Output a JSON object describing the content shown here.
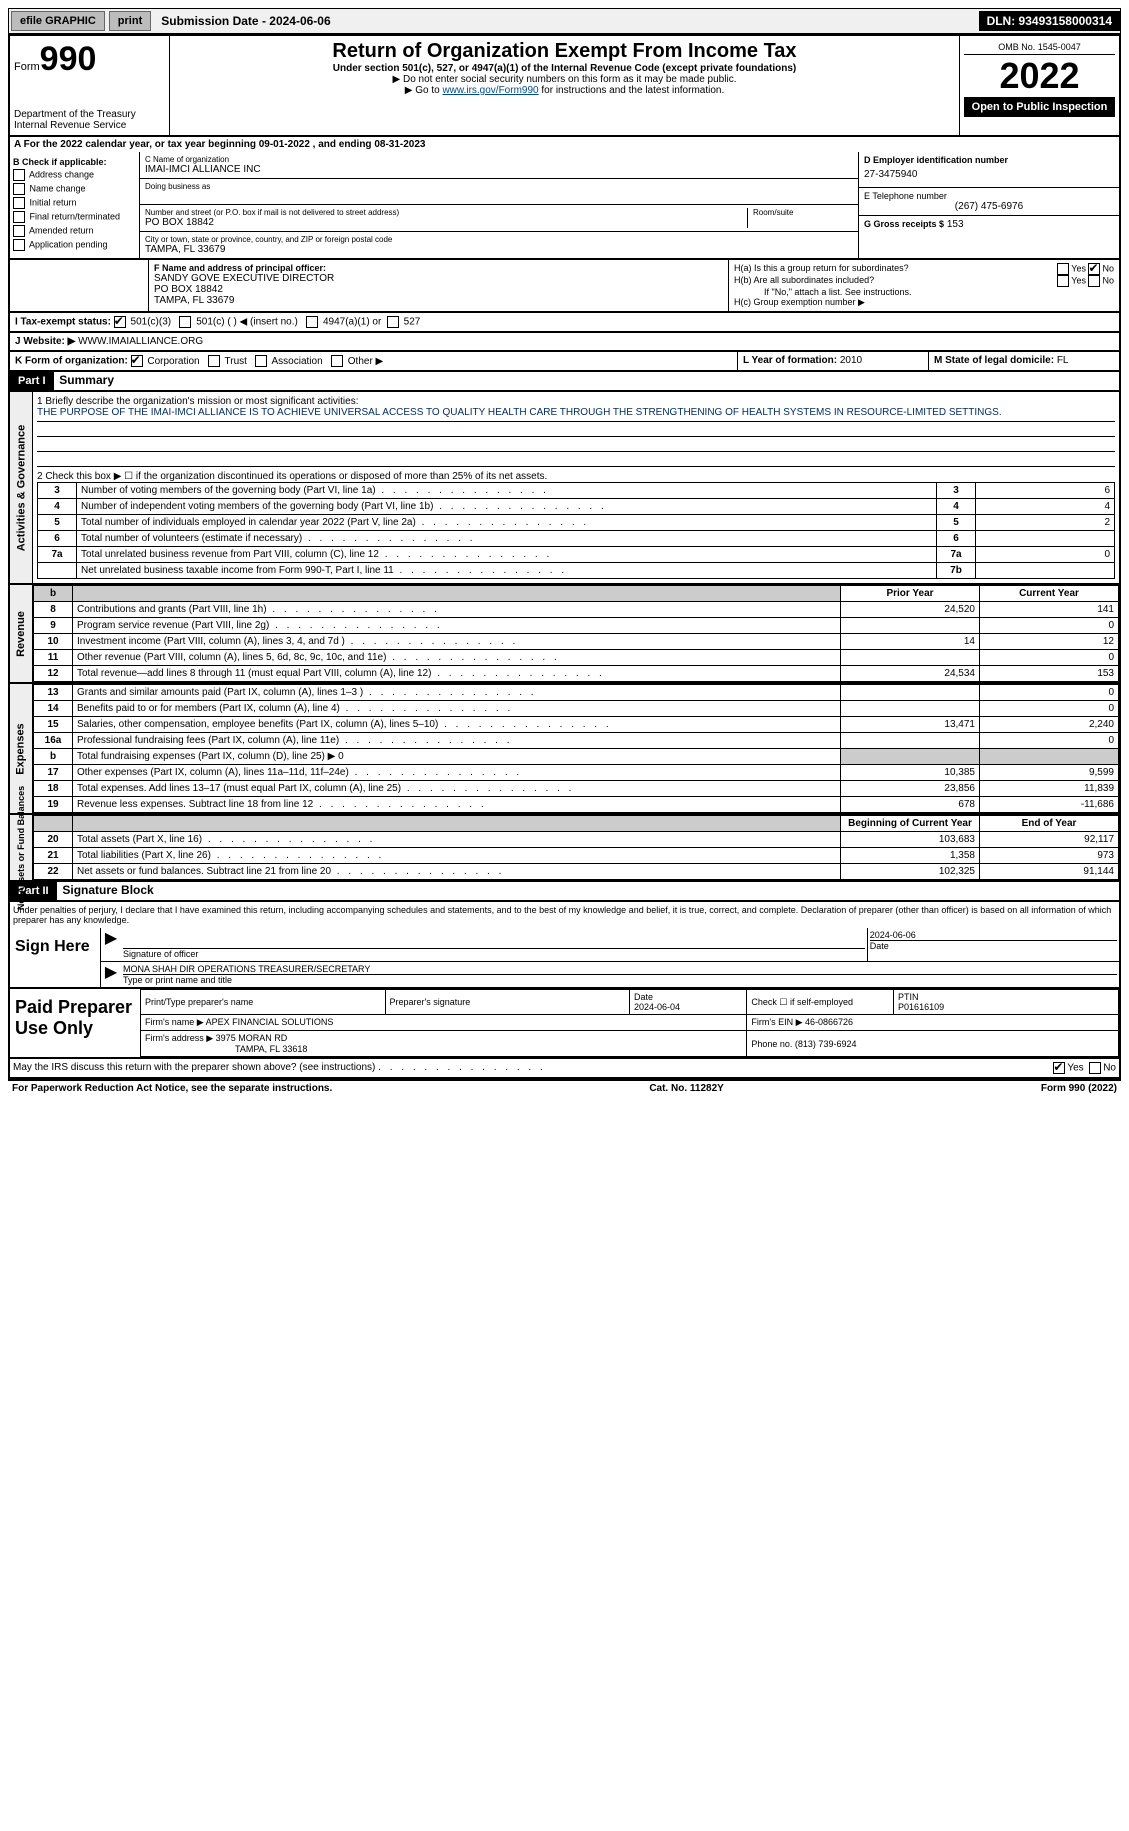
{
  "topbar": {
    "efile": "efile GRAPHIC",
    "print": "print",
    "submission": "Submission Date - 2024-06-06",
    "dln": "DLN: 93493158000314"
  },
  "header": {
    "form_prefix": "Form",
    "form_number": "990",
    "dept": "Department of the Treasury",
    "irs": "Internal Revenue Service",
    "title": "Return of Organization Exempt From Income Tax",
    "subtitle": "Under section 501(c), 527, or 4947(a)(1) of the Internal Revenue Code (except private foundations)",
    "note1": "▶ Do not enter social security numbers on this form as it may be made public.",
    "note2_pre": "▶ Go to ",
    "note2_link": "www.irs.gov/Form990",
    "note2_post": " for instructions and the latest information.",
    "omb": "OMB No. 1545-0047",
    "year": "2022",
    "open": "Open to Public Inspection"
  },
  "line_a": "A For the 2022 calendar year, or tax year beginning 09-01-2022    , and ending 08-31-2023",
  "col_b": {
    "header": "B Check if applicable:",
    "items": [
      "Address change",
      "Name change",
      "Initial return",
      "Final return/terminated",
      "Amended return",
      "Application pending"
    ]
  },
  "col_c": {
    "name_label": "C Name of organization",
    "name": "IMAI-IMCI ALLIANCE INC",
    "dba_label": "Doing business as",
    "street_label": "Number and street (or P.O. box if mail is not delivered to street address)",
    "room_label": "Room/suite",
    "street": "PO BOX 18842",
    "city_label": "City or town, state or province, country, and ZIP or foreign postal code",
    "city": "TAMPA, FL  33679"
  },
  "col_d": {
    "ein_label": "D Employer identification number",
    "ein": "27-3475940",
    "phone_label": "E Telephone number",
    "phone": "(267) 475-6976",
    "gross_label": "G Gross receipts $",
    "gross": "153"
  },
  "row_f": {
    "label": "F Name and address of principal officer:",
    "name": "SANDY GOVE EXECUTIVE DIRECTOR",
    "addr1": "PO BOX 18842",
    "addr2": "TAMPA, FL  33679"
  },
  "row_h": {
    "ha_label": "H(a)  Is this a group return for subordinates?",
    "hb_label": "H(b)  Are all subordinates included?",
    "hb_note": "If \"No,\" attach a list. See instructions.",
    "hc_label": "H(c)  Group exemption number ▶",
    "yes": "Yes",
    "no": "No"
  },
  "row_i": {
    "label": "I   Tax-exempt status:",
    "opt1": "501(c)(3)",
    "opt2": "501(c) (   ) ◀ (insert no.)",
    "opt3": "4947(a)(1) or",
    "opt4": "527"
  },
  "row_j": {
    "label": "J   Website: ▶",
    "value": "WWW.IMAIALLIANCE.ORG"
  },
  "row_k": {
    "label": "K Form of organization:",
    "opts": [
      "Corporation",
      "Trust",
      "Association",
      "Other ▶"
    ],
    "l_label": "L Year of formation:",
    "l_val": "2010",
    "m_label": "M State of legal domicile:",
    "m_val": "FL"
  },
  "part1": {
    "header": "Part I",
    "title": "Summary"
  },
  "summary": {
    "q1": "1  Briefly describe the organization's mission or most significant activities:",
    "mission": "THE PURPOSE OF THE IMAI-IMCI ALLIANCE IS TO ACHIEVE UNIVERSAL ACCESS TO QUALITY HEALTH CARE THROUGH THE STRENGTHENING OF HEALTH SYSTEMS IN RESOURCE-LIMITED SETTINGS.",
    "q2": "2  Check this box ▶ ☐  if the organization discontinued its operations or disposed of more than 25% of its net assets.",
    "lines": [
      {
        "n": "3",
        "d": "Number of voting members of the governing body (Part VI, line 1a)",
        "b": "3",
        "v": "6"
      },
      {
        "n": "4",
        "d": "Number of independent voting members of the governing body (Part VI, line 1b)",
        "b": "4",
        "v": "4"
      },
      {
        "n": "5",
        "d": "Total number of individuals employed in calendar year 2022 (Part V, line 2a)",
        "b": "5",
        "v": "2"
      },
      {
        "n": "6",
        "d": "Total number of volunteers (estimate if necessary)",
        "b": "6",
        "v": ""
      },
      {
        "n": "7a",
        "d": "Total unrelated business revenue from Part VIII, column (C), line 12",
        "b": "7a",
        "v": "0"
      },
      {
        "n": "",
        "d": "Net unrelated business taxable income from Form 990-T, Part I, line 11",
        "b": "7b",
        "v": ""
      }
    ]
  },
  "revenue": {
    "tab": "Revenue",
    "prior_label": "Prior Year",
    "current_label": "Current Year",
    "rows": [
      {
        "n": "8",
        "d": "Contributions and grants (Part VIII, line 1h)",
        "p": "24,520",
        "c": "141"
      },
      {
        "n": "9",
        "d": "Program service revenue (Part VIII, line 2g)",
        "p": "",
        "c": "0"
      },
      {
        "n": "10",
        "d": "Investment income (Part VIII, column (A), lines 3, 4, and 7d )",
        "p": "14",
        "c": "12"
      },
      {
        "n": "11",
        "d": "Other revenue (Part VIII, column (A), lines 5, 6d, 8c, 9c, 10c, and 11e)",
        "p": "",
        "c": "0"
      },
      {
        "n": "12",
        "d": "Total revenue—add lines 8 through 11 (must equal Part VIII, column (A), line 12)",
        "p": "24,534",
        "c": "153"
      }
    ]
  },
  "expenses": {
    "tab": "Expenses",
    "rows": [
      {
        "n": "13",
        "d": "Grants and similar amounts paid (Part IX, column (A), lines 1–3 )",
        "p": "",
        "c": "0"
      },
      {
        "n": "14",
        "d": "Benefits paid to or for members (Part IX, column (A), line 4)",
        "p": "",
        "c": "0"
      },
      {
        "n": "15",
        "d": "Salaries, other compensation, employee benefits (Part IX, column (A), lines 5–10)",
        "p": "13,471",
        "c": "2,240"
      },
      {
        "n": "16a",
        "d": "Professional fundraising fees (Part IX, column (A), line 11e)",
        "p": "",
        "c": "0"
      },
      {
        "n": "b",
        "d": "Total fundraising expenses (Part IX, column (D), line 25) ▶ 0",
        "p": "grey",
        "c": "grey"
      },
      {
        "n": "17",
        "d": "Other expenses (Part IX, column (A), lines 11a–11d, 11f–24e)",
        "p": "10,385",
        "c": "9,599"
      },
      {
        "n": "18",
        "d": "Total expenses. Add lines 13–17 (must equal Part IX, column (A), line 25)",
        "p": "23,856",
        "c": "11,839"
      },
      {
        "n": "19",
        "d": "Revenue less expenses. Subtract line 18 from line 12",
        "p": "678",
        "c": "-11,686"
      }
    ]
  },
  "netassets": {
    "tab": "Net Assets or Fund Balances",
    "begin_label": "Beginning of Current Year",
    "end_label": "End of Year",
    "rows": [
      {
        "n": "20",
        "d": "Total assets (Part X, line 16)",
        "p": "103,683",
        "c": "92,117"
      },
      {
        "n": "21",
        "d": "Total liabilities (Part X, line 26)",
        "p": "1,358",
        "c": "973"
      },
      {
        "n": "22",
        "d": "Net assets or fund balances. Subtract line 21 from line 20",
        "p": "102,325",
        "c": "91,144"
      }
    ]
  },
  "part2": {
    "header": "Part II",
    "title": "Signature Block",
    "penalties": "Under penalties of perjury, I declare that I have examined this return, including accompanying schedules and statements, and to the best of my knowledge and belief, it is true, correct, and complete. Declaration of preparer (other than officer) is based on all information of which preparer has any knowledge."
  },
  "sign": {
    "label": "Sign Here",
    "sig_of": "Signature of officer",
    "date_label": "Date",
    "date": "2024-06-06",
    "name": "MONA SHAH DIR OPERATIONS  TREASURER/SECRETARY",
    "type_label": "Type or print name and title"
  },
  "preparer": {
    "label": "Paid Preparer Use Only",
    "print_name_label": "Print/Type preparer's name",
    "sig_label": "Preparer's signature",
    "date_label": "Date",
    "date": "2024-06-04",
    "check_label": "Check ☐ if self-employed",
    "ptin_label": "PTIN",
    "ptin": "P01616109",
    "firm_name_label": "Firm's name    ▶",
    "firm_name": "APEX FINANCIAL SOLUTIONS",
    "firm_ein_label": "Firm's EIN ▶",
    "firm_ein": "46-0866726",
    "firm_addr_label": "Firm's address ▶",
    "firm_addr1": "3975 MORAN RD",
    "firm_addr2": "TAMPA, FL  33618",
    "phone_label": "Phone no.",
    "phone": "(813) 739-6924"
  },
  "discuss": {
    "q": "May the IRS discuss this return with the preparer shown above? (see instructions)",
    "yes": "Yes",
    "no": "No"
  },
  "footer": {
    "left": "For Paperwork Reduction Act Notice, see the separate instructions.",
    "mid": "Cat. No. 11282Y",
    "right": "Form 990 (2022)"
  },
  "vtabs": {
    "activities": "Activities & Governance"
  }
}
